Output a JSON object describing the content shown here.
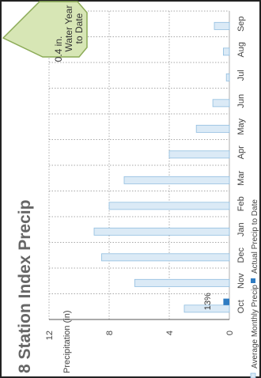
{
  "colors": {
    "frame": "#222222",
    "average_fill": "#dbeaf6",
    "average_stroke": "#8fbde0",
    "actual_fill": "#2f7cc2",
    "gridline": "#8a8a8a",
    "badge_fill": "#d7e6b5",
    "badge_stroke": "#8cab57",
    "title": "#666666"
  },
  "badge": {
    "line1": "0.4 in.",
    "line2": "Water Year",
    "line3": "to Date"
  },
  "chart_data": {
    "type": "bar",
    "orientation": "horizontal",
    "title": "8 Station Index Precip",
    "ylabel": "Precipitation (in)",
    "ylim": [
      0,
      12
    ],
    "yticks": [
      0,
      4,
      8,
      12
    ],
    "grid": true,
    "categories": [
      "Oct",
      "Nov",
      "Dec",
      "Jan",
      "Feb",
      "Mar",
      "Apr",
      "May",
      "Jun",
      "Jul",
      "Aug",
      "Sep"
    ],
    "series": [
      {
        "name": "Average Monthly Precip",
        "values": [
          3.0,
          6.3,
          8.5,
          9.0,
          8.0,
          7.0,
          4.0,
          2.2,
          1.1,
          0.2,
          0.4,
          1.0
        ]
      },
      {
        "name": "Actual Precip to Date",
        "values": [
          0.4,
          0,
          0,
          0,
          0,
          0,
          0,
          0,
          0,
          0,
          0,
          0
        ]
      }
    ],
    "annotations": [
      {
        "category": "Oct",
        "text": "13%"
      }
    ],
    "legend_position": "bottom"
  }
}
